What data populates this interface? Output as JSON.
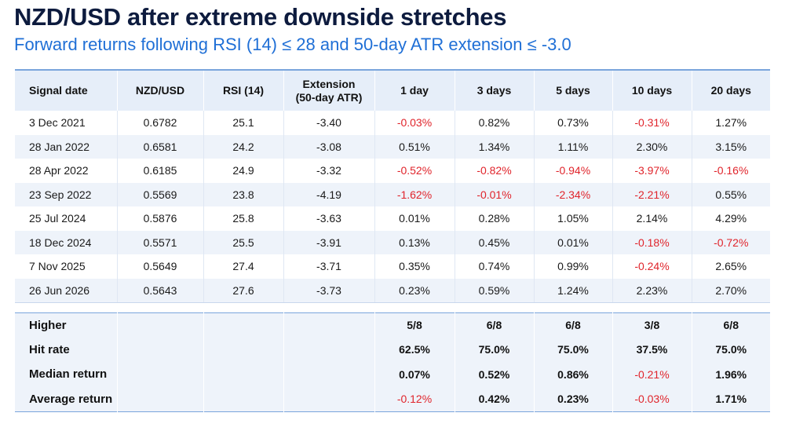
{
  "title": "NZD/USD after extreme downside stretches",
  "subtitle": "Forward returns following RSI (14) ≤ 28 and 50-day ATR extension ≤ -3.0",
  "colors": {
    "title": "#0d1b3e",
    "subtitle": "#1f6fd6",
    "negative": "#e0242b",
    "header_bg": "#e6eef9"
  },
  "table": {
    "headers": [
      "Signal date",
      "NZD/USD",
      "RSI (14)",
      "Extension\n(50-day ATR)",
      "1 day",
      "3 days",
      "5 days",
      "10 days",
      "20 days"
    ],
    "rows": [
      [
        "3 Dec 2021",
        "0.6782",
        "25.1",
        "-3.40",
        "-0.03%",
        "0.82%",
        "0.73%",
        "-0.31%",
        "1.27%"
      ],
      [
        "28 Jan 2022",
        "0.6581",
        "24.2",
        "-3.08",
        "0.51%",
        "1.34%",
        "1.11%",
        "2.30%",
        "3.15%"
      ],
      [
        "28 Apr 2022",
        "0.6185",
        "24.9",
        "-3.32",
        "-0.52%",
        "-0.82%",
        "-0.94%",
        "-3.97%",
        "-0.16%"
      ],
      [
        "23 Sep 2022",
        "0.5569",
        "23.8",
        "-4.19",
        "-1.62%",
        "-0.01%",
        "-2.34%",
        "-2.21%",
        "0.55%"
      ],
      [
        "25 Jul 2024",
        "0.5876",
        "25.8",
        "-3.63",
        "0.01%",
        "0.28%",
        "1.05%",
        "2.14%",
        "4.29%"
      ],
      [
        "18 Dec 2024",
        "0.5571",
        "25.5",
        "-3.91",
        "0.13%",
        "0.45%",
        "0.01%",
        "-0.18%",
        "-0.72%"
      ],
      [
        "7 Nov 2025",
        "0.5649",
        "27.4",
        "-3.71",
        "0.35%",
        "0.74%",
        "0.99%",
        "-0.24%",
        "2.65%"
      ],
      [
        "26 Jun 2026",
        "0.5643",
        "27.6",
        "-3.73",
        "0.23%",
        "0.59%",
        "1.24%",
        "2.23%",
        "2.70%"
      ]
    ],
    "summary": [
      [
        "Higher",
        "",
        "",
        "",
        "5/8",
        "6/8",
        "6/8",
        "3/8",
        "6/8"
      ],
      [
        "Hit rate",
        "",
        "",
        "",
        "62.5%",
        "75.0%",
        "75.0%",
        "37.5%",
        "75.0%"
      ],
      [
        "Median return",
        "",
        "",
        "",
        "0.07%",
        "0.52%",
        "0.86%",
        "-0.21%",
        "1.96%"
      ],
      [
        "Average return",
        "",
        "",
        "",
        "-0.12%",
        "0.42%",
        "0.23%",
        "-0.03%",
        "1.71%"
      ]
    ]
  }
}
